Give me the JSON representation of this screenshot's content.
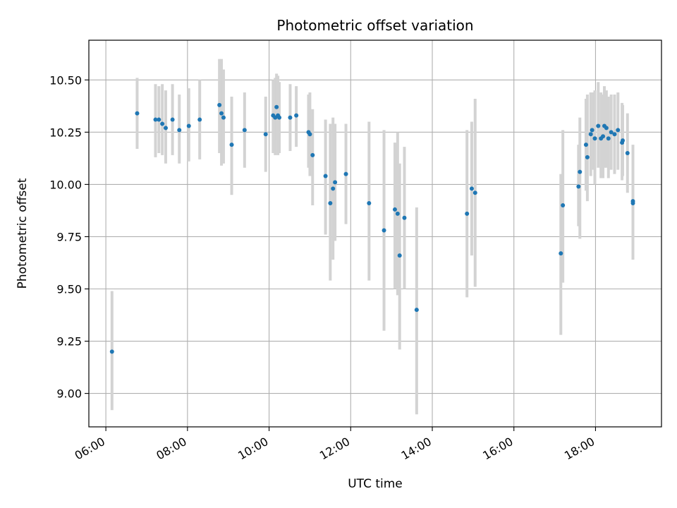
{
  "chart_data": {
    "type": "scatter",
    "title": "Photometric offset variation",
    "xlabel": "UTC time",
    "ylabel": "Photometric offset",
    "x_unit": "UTC time (HH:MM)",
    "xlim": [
      "05:35",
      "19:37"
    ],
    "ylim": [
      8.84,
      10.69
    ],
    "x_ticks": [
      "06:00",
      "08:00",
      "10:00",
      "12:00",
      "14:00",
      "16:00",
      "18:00"
    ],
    "y_ticks": [
      "9.00",
      "9.25",
      "9.50",
      "9.75",
      "10.00",
      "10.25",
      "10.50"
    ],
    "grid": true,
    "colors": {
      "point": "#1f77b4",
      "errorbar": "#d3d3d3",
      "grid": "#b0b0b0"
    },
    "points": [
      {
        "t": "06:09",
        "y": 9.2,
        "lo": 8.92,
        "hi": 9.49
      },
      {
        "t": "06:46",
        "y": 10.34,
        "lo": 10.17,
        "hi": 10.51
      },
      {
        "t": "07:13",
        "y": 10.31,
        "lo": 10.13,
        "hi": 10.48
      },
      {
        "t": "07:18",
        "y": 10.31,
        "lo": 10.15,
        "hi": 10.47
      },
      {
        "t": "07:23",
        "y": 10.29,
        "lo": 10.14,
        "hi": 10.48
      },
      {
        "t": "07:28",
        "y": 10.27,
        "lo": 10.1,
        "hi": 10.45
      },
      {
        "t": "07:38",
        "y": 10.31,
        "lo": 10.14,
        "hi": 10.48
      },
      {
        "t": "07:48",
        "y": 10.26,
        "lo": 10.1,
        "hi": 10.43
      },
      {
        "t": "08:02",
        "y": 10.28,
        "lo": 10.11,
        "hi": 10.46
      },
      {
        "t": "08:18",
        "y": 10.31,
        "lo": 10.12,
        "hi": 10.5
      },
      {
        "t": "08:47",
        "y": 10.38,
        "lo": 10.15,
        "hi": 10.6
      },
      {
        "t": "08:50",
        "y": 10.34,
        "lo": 10.09,
        "hi": 10.6
      },
      {
        "t": "08:53",
        "y": 10.32,
        "lo": 10.1,
        "hi": 10.55
      },
      {
        "t": "09:05",
        "y": 10.19,
        "lo": 9.95,
        "hi": 10.42
      },
      {
        "t": "09:24",
        "y": 10.26,
        "lo": 10.08,
        "hi": 10.44
      },
      {
        "t": "09:55",
        "y": 10.24,
        "lo": 10.06,
        "hi": 10.42
      },
      {
        "t": "10:06",
        "y": 10.33,
        "lo": 10.15,
        "hi": 10.5
      },
      {
        "t": "10:09",
        "y": 10.32,
        "lo": 10.14,
        "hi": 10.51
      },
      {
        "t": "10:11",
        "y": 10.37,
        "lo": 10.21,
        "hi": 10.53
      },
      {
        "t": "10:13",
        "y": 10.33,
        "lo": 10.14,
        "hi": 10.52
      },
      {
        "t": "10:15",
        "y": 10.32,
        "lo": 10.15,
        "hi": 10.49
      },
      {
        "t": "10:31",
        "y": 10.32,
        "lo": 10.16,
        "hi": 10.48
      },
      {
        "t": "10:40",
        "y": 10.33,
        "lo": 10.18,
        "hi": 10.47
      },
      {
        "t": "10:58",
        "y": 10.25,
        "lo": 10.08,
        "hi": 10.43
      },
      {
        "t": "11:00",
        "y": 10.24,
        "lo": 10.04,
        "hi": 10.44
      },
      {
        "t": "11:04",
        "y": 10.14,
        "lo": 9.9,
        "hi": 10.36
      },
      {
        "t": "11:23",
        "y": 10.04,
        "lo": 9.76,
        "hi": 10.31
      },
      {
        "t": "11:30",
        "y": 9.91,
        "lo": 9.54,
        "hi": 10.29
      },
      {
        "t": "11:34",
        "y": 9.98,
        "lo": 9.64,
        "hi": 10.32
      },
      {
        "t": "11:37",
        "y": 10.01,
        "lo": 9.73,
        "hi": 10.29
      },
      {
        "t": "11:53",
        "y": 10.05,
        "lo": 9.81,
        "hi": 10.29
      },
      {
        "t": "12:27",
        "y": 9.91,
        "lo": 9.54,
        "hi": 10.3
      },
      {
        "t": "12:49",
        "y": 9.78,
        "lo": 9.3,
        "hi": 10.26
      },
      {
        "t": "13:05",
        "y": 9.88,
        "lo": 9.5,
        "hi": 10.2
      },
      {
        "t": "13:09",
        "y": 9.86,
        "lo": 9.47,
        "hi": 10.25
      },
      {
        "t": "13:12",
        "y": 9.66,
        "lo": 9.21,
        "hi": 10.1
      },
      {
        "t": "13:19",
        "y": 9.84,
        "lo": 9.5,
        "hi": 10.18
      },
      {
        "t": "13:37",
        "y": 9.4,
        "lo": 8.9,
        "hi": 9.89
      },
      {
        "t": "14:51",
        "y": 9.86,
        "lo": 9.46,
        "hi": 10.26
      },
      {
        "t": "14:58",
        "y": 9.98,
        "lo": 9.66,
        "hi": 10.3
      },
      {
        "t": "15:03",
        "y": 9.96,
        "lo": 9.51,
        "hi": 10.41
      },
      {
        "t": "17:09",
        "y": 9.67,
        "lo": 9.28,
        "hi": 10.05
      },
      {
        "t": "17:12",
        "y": 9.9,
        "lo": 9.53,
        "hi": 10.26
      },
      {
        "t": "17:35",
        "y": 9.99,
        "lo": 9.8,
        "hi": 10.19
      },
      {
        "t": "17:37",
        "y": 10.06,
        "lo": 9.74,
        "hi": 10.32
      },
      {
        "t": "17:46",
        "y": 10.19,
        "lo": 9.97,
        "hi": 10.41
      },
      {
        "t": "17:48",
        "y": 10.13,
        "lo": 9.92,
        "hi": 10.43
      },
      {
        "t": "17:53",
        "y": 10.24,
        "lo": 10.04,
        "hi": 10.44
      },
      {
        "t": "17:55",
        "y": 10.26,
        "lo": 10.07,
        "hi": 10.44
      },
      {
        "t": "17:59",
        "y": 10.22,
        "lo": 10.0,
        "hi": 10.45
      },
      {
        "t": "18:04",
        "y": 10.28,
        "lo": 10.08,
        "hi": 10.49
      },
      {
        "t": "18:08",
        "y": 10.22,
        "lo": 10.03,
        "hi": 10.44
      },
      {
        "t": "18:11",
        "y": 10.23,
        "lo": 10.03,
        "hi": 10.43
      },
      {
        "t": "18:13",
        "y": 10.28,
        "lo": 10.08,
        "hi": 10.47
      },
      {
        "t": "18:16",
        "y": 10.27,
        "lo": 10.08,
        "hi": 10.45
      },
      {
        "t": "18:19",
        "y": 10.22,
        "lo": 10.03,
        "hi": 10.42
      },
      {
        "t": "18:23",
        "y": 10.25,
        "lo": 10.07,
        "hi": 10.43
      },
      {
        "t": "18:28",
        "y": 10.24,
        "lo": 10.05,
        "hi": 10.43
      },
      {
        "t": "18:33",
        "y": 10.26,
        "lo": 10.07,
        "hi": 10.44
      },
      {
        "t": "18:39",
        "y": 10.2,
        "lo": 10.02,
        "hi": 10.39
      },
      {
        "t": "18:40",
        "y": 10.21,
        "lo": 10.04,
        "hi": 10.38
      },
      {
        "t": "18:47",
        "y": 10.15,
        "lo": 9.96,
        "hi": 10.34
      },
      {
        "t": "18:55",
        "y": 9.91,
        "lo": 9.64,
        "hi": 10.19
      },
      {
        "t": "18:55",
        "y": 9.92,
        "lo": 9.65,
        "hi": 10.17
      }
    ]
  }
}
